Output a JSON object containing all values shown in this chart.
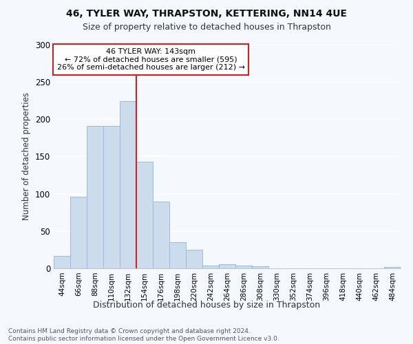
{
  "title1": "46, TYLER WAY, THRAPSTON, KETTERING, NN14 4UE",
  "title2": "Size of property relative to detached houses in Thrapston",
  "xlabel": "Distribution of detached houses by size in Thrapston",
  "ylabel": "Number of detached properties",
  "categories": [
    "44sqm",
    "66sqm",
    "88sqm",
    "110sqm",
    "132sqm",
    "154sqm",
    "176sqm",
    "198sqm",
    "220sqm",
    "242sqm",
    "264sqm",
    "286sqm",
    "308sqm",
    "330sqm",
    "352sqm",
    "374sqm",
    "396sqm",
    "418sqm",
    "440sqm",
    "462sqm",
    "484sqm"
  ],
  "values": [
    17,
    96,
    191,
    191,
    224,
    143,
    90,
    35,
    25,
    4,
    6,
    4,
    3,
    0,
    0,
    0,
    0,
    0,
    0,
    0,
    2
  ],
  "bar_color": "#ccdcec",
  "bar_edge_color": "#99bbdd",
  "vline_x_index": 5,
  "vline_color": "#cc2222",
  "annotation_text": "46 TYLER WAY: 143sqm\n← 72% of detached houses are smaller (595)\n26% of semi-detached houses are larger (212) →",
  "annotation_box_facecolor": "white",
  "annotation_box_edgecolor": "#cc2222",
  "ylim": [
    0,
    300
  ],
  "yticks": [
    0,
    50,
    100,
    150,
    200,
    250,
    300
  ],
  "footer": "Contains HM Land Registry data © Crown copyright and database right 2024.\nContains public sector information licensed under the Open Government Licence v3.0.",
  "bg_color": "#f5f8fc",
  "grid_color": "#ffffff"
}
